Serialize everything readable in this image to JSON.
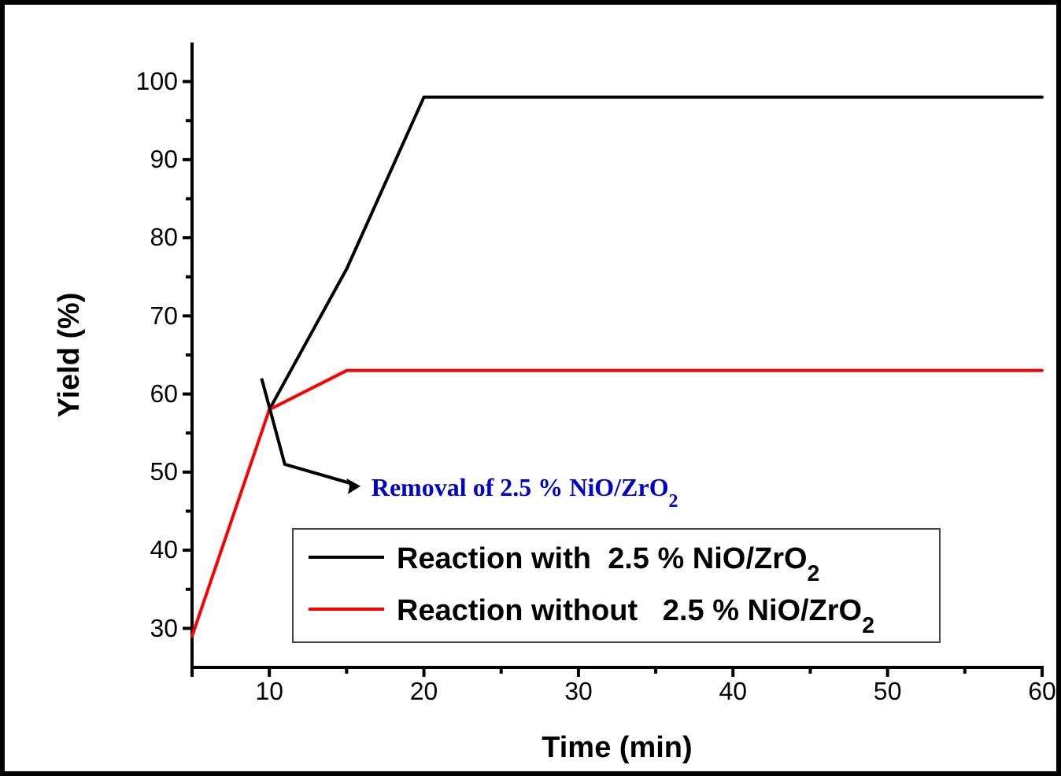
{
  "chart_data": {
    "type": "line",
    "xlabel": "Time (min)",
    "ylabel": "Yield (%)",
    "xlim": [
      5,
      60
    ],
    "ylim": [
      25,
      105
    ],
    "xticks": [
      {
        "value": 5,
        "label": null
      },
      10,
      {
        "value": 15,
        "label": null
      },
      20,
      {
        "value": 25,
        "label": null
      },
      30,
      {
        "value": 35,
        "label": null
      },
      40,
      {
        "value": 45,
        "label": null
      },
      50,
      {
        "value": 55,
        "label": null
      },
      60
    ],
    "yticks": [
      30,
      {
        "value": 35,
        "label": null
      },
      40,
      {
        "value": 45,
        "label": null
      },
      50,
      {
        "value": 55,
        "label": null
      },
      60,
      {
        "value": 65,
        "label": null
      },
      70,
      {
        "value": 75,
        "label": null
      },
      80,
      {
        "value": 85,
        "label": null
      },
      90,
      {
        "value": 95,
        "label": null
      },
      100
    ],
    "series": [
      {
        "name": "Reaction with  2.5 % NiO/ZrO$_{2}$",
        "color": "#000000",
        "x": [
          10,
          15,
          20,
          60
        ],
        "values": [
          58,
          76,
          98,
          98
        ]
      },
      {
        "name": "Reaction without   2.5 % NiO/ZrO$_{2}$",
        "color": "#ff0000",
        "x": [
          5,
          10,
          15,
          60
        ],
        "values": [
          29,
          58,
          63,
          63
        ]
      }
    ],
    "annotations": [
      "Removal of 2.5 % NiO/ZrO$_{2}$"
    ],
    "legend": "bottom",
    "grid": false,
    "marker": "none",
    "line_style": "solid"
  }
}
